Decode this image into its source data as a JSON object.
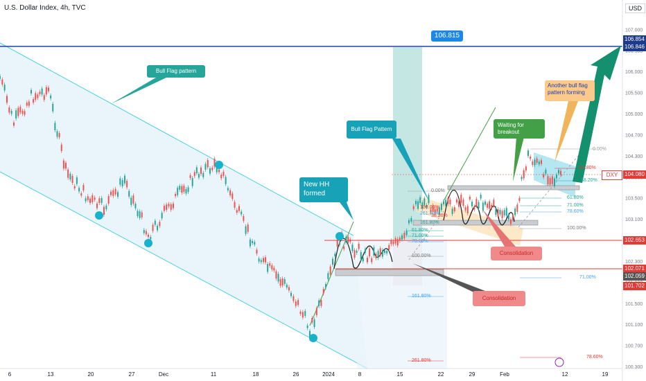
{
  "header": {
    "title": "U.S. Dollar Index, 4h, TVC",
    "currency": "USD"
  },
  "chart_data": {
    "type": "candlestick",
    "title": "U.S. Dollar Index, 4h, TVC",
    "symbol": "DXY",
    "last_price": "104.080",
    "ylim": [
      100.28,
      107.6
    ],
    "y_ticks": [
      "107.500",
      "107.000",
      "106.500",
      "106.000",
      "105.500",
      "105.000",
      "104.700",
      "104.300",
      "103.900",
      "103.500",
      "103.100",
      "102.700",
      "102.300",
      "101.900",
      "101.500",
      "101.100",
      "100.700",
      "100.300"
    ],
    "x_ticks": [
      "6",
      "13",
      "20",
      "27",
      "Dec",
      "11",
      "18",
      "26",
      "2024",
      "8",
      "15",
      "22",
      "29",
      "Feb",
      "12",
      "19"
    ],
    "price_labels": [
      {
        "value": "106.854",
        "color": "#1e3a8a"
      },
      {
        "value": "106.846",
        "color": "#1e3a8a"
      },
      {
        "value": "102.653",
        "color": "#e53935"
      },
      {
        "value": "102.071",
        "color": "#e53935"
      },
      {
        "value": "102.059",
        "color": "#555555"
      },
      {
        "value": "101.702",
        "color": "#e53935"
      }
    ],
    "target_label": "106.815",
    "annotations": [
      "Bull Flag pattern",
      "New HH formed",
      "Bull Flag Pattern",
      "Waiting for breakout",
      "Another bull flag pattern forming",
      "Consolidation",
      "Consolidation"
    ],
    "fib_labels": [
      "0.00%",
      "61.80%",
      "71.00%",
      "78.60%",
      "100.00%",
      "161.80%",
      "261.80%",
      "0.00%",
      "38.20%",
      "61.80%",
      "71.00%",
      "78.60%",
      "100.00%",
      "38.20%",
      "61.80%",
      "71.00%",
      "78.60%",
      "100.00%",
      "161.80%",
      "261.80%"
    ],
    "candles": []
  },
  "colors": {
    "up": "#26a69a",
    "down": "#ef5350",
    "channel": "#4dd0e1",
    "target": "#1e40af",
    "resistance": "#e53935"
  }
}
